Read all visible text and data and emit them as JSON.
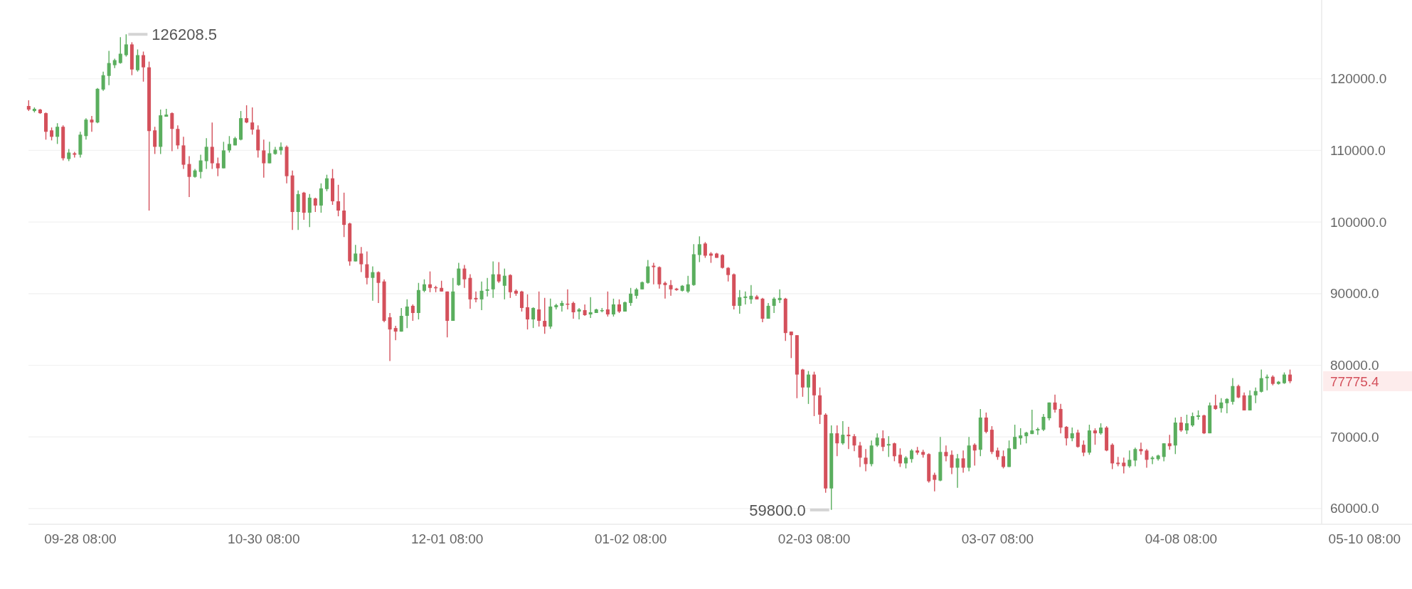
{
  "chart_data": {
    "type": "candlestick",
    "categories": [
      null,
      null,
      null,
      null,
      null,
      null,
      null,
      null,
      null,
      "09-28 08:00",
      null,
      null,
      null,
      null,
      null,
      null,
      null,
      null,
      null,
      null,
      null,
      null,
      null,
      null,
      null,
      null,
      null,
      null,
      null,
      null,
      null,
      null,
      null,
      null,
      null,
      null,
      null,
      null,
      null,
      null,
      null,
      "10-30 08:00",
      null,
      null,
      null,
      null,
      null,
      null,
      null,
      null,
      null,
      null,
      null,
      null,
      null,
      null,
      null,
      null,
      null,
      null,
      null,
      null,
      null,
      null,
      null,
      null,
      null,
      null,
      null,
      null,
      null,
      null,
      null,
      "12-01 08:00",
      null,
      null,
      null,
      null,
      null,
      null,
      null,
      null,
      null,
      null,
      null,
      null,
      null,
      null,
      null,
      null,
      null,
      null,
      null,
      null,
      null,
      null,
      null,
      null,
      null,
      null,
      null,
      null,
      null,
      null,
      null,
      "01-02 08:00",
      null,
      null,
      null,
      null,
      null,
      null,
      null,
      null,
      null,
      null,
      null,
      null,
      null,
      null,
      null,
      null,
      null,
      null,
      null,
      null,
      null,
      null,
      null,
      null,
      null,
      null,
      null,
      null,
      null,
      null,
      null,
      "02-03 08:00",
      null,
      null,
      null,
      null,
      null,
      null,
      null,
      null,
      null,
      null,
      null,
      null,
      null,
      null,
      null,
      null,
      null,
      null,
      null,
      null,
      null,
      null,
      null,
      null,
      null,
      null,
      null,
      null,
      null,
      null,
      null,
      "03-07 08:00",
      null,
      null,
      null,
      null,
      null,
      null,
      null,
      null,
      null,
      null,
      null,
      null,
      null,
      null,
      null,
      null,
      null,
      null,
      null,
      null,
      null,
      null,
      null,
      null,
      null,
      null,
      null,
      null,
      null,
      null,
      null,
      "04-08 08:00",
      null,
      null,
      null,
      null,
      null,
      null,
      null,
      null,
      null,
      null,
      null,
      null,
      null,
      null,
      null,
      null,
      null,
      null,
      null,
      null,
      null,
      null,
      null,
      null,
      null,
      null,
      null,
      null,
      null,
      null,
      null,
      "05-10 08:00"
    ],
    "ohlc": [
      [
        116200,
        117000,
        115500,
        115700
      ],
      [
        115500,
        116000,
        115300,
        115800
      ],
      [
        115700,
        115800,
        115100,
        115200
      ],
      [
        115200,
        115300,
        111500,
        112600
      ],
      [
        112800,
        113200,
        111400,
        111900
      ],
      [
        111900,
        113800,
        110900,
        113300
      ],
      [
        113300,
        113500,
        108600,
        108900
      ],
      [
        108800,
        110200,
        108500,
        109700
      ],
      [
        109600,
        109800,
        109000,
        109400
      ],
      [
        109400,
        112600,
        109000,
        112200
      ],
      [
        112000,
        114500,
        111500,
        114300
      ],
      [
        114300,
        114800,
        112600,
        113900
      ],
      [
        113900,
        118700,
        113800,
        118600
      ],
      [
        118500,
        121000,
        118300,
        120500
      ],
      [
        120400,
        123900,
        119100,
        122200
      ],
      [
        121900,
        122800,
        121500,
        122600
      ],
      [
        122200,
        125800,
        122100,
        123500
      ],
      [
        123300,
        126208.5,
        123100,
        124800
      ],
      [
        124800,
        125100,
        120500,
        121300
      ],
      [
        121200,
        124100,
        121000,
        123300
      ],
      [
        123300,
        123800,
        119600,
        121600
      ],
      [
        121600,
        122400,
        101600,
        112700
      ],
      [
        112800,
        113300,
        109500,
        110500
      ],
      [
        110500,
        115700,
        109500,
        114900
      ],
      [
        114700,
        115800,
        114700,
        115000
      ],
      [
        115200,
        115300,
        109900,
        113000
      ],
      [
        113000,
        113500,
        110200,
        110700
      ],
      [
        110700,
        111900,
        107400,
        108000
      ],
      [
        108100,
        109200,
        103500,
        106300
      ],
      [
        106300,
        107400,
        106200,
        107200
      ],
      [
        107000,
        109400,
        106100,
        108600
      ],
      [
        108500,
        111700,
        107400,
        110500
      ],
      [
        110500,
        113900,
        107400,
        108200
      ],
      [
        108200,
        109000,
        106400,
        107500
      ],
      [
        107500,
        111200,
        107500,
        110000
      ],
      [
        110000,
        112000,
        109700,
        110900
      ],
      [
        110700,
        111900,
        110700,
        111700
      ],
      [
        111500,
        115500,
        111400,
        114500
      ],
      [
        114500,
        116300,
        113800,
        113900
      ],
      [
        113900,
        116000,
        112200,
        112900
      ],
      [
        112900,
        113500,
        109000,
        110000
      ],
      [
        110000,
        111500,
        106200,
        108200
      ],
      [
        108200,
        111200,
        108200,
        109600
      ],
      [
        109500,
        110500,
        109400,
        110100
      ],
      [
        110000,
        111100,
        109400,
        110500
      ],
      [
        110500,
        110700,
        105400,
        106400
      ],
      [
        106500,
        107200,
        98900,
        101400
      ],
      [
        101400,
        104400,
        98900,
        103900
      ],
      [
        104100,
        104200,
        100300,
        101300
      ],
      [
        101300,
        103900,
        99300,
        103400
      ],
      [
        103300,
        103400,
        101400,
        102300
      ],
      [
        102300,
        105400,
        101300,
        104700
      ],
      [
        104600,
        106600,
        104300,
        106100
      ],
      [
        106100,
        107400,
        102400,
        102900
      ],
      [
        102900,
        105200,
        100800,
        101600
      ],
      [
        101600,
        104100,
        97900,
        99600
      ],
      [
        99800,
        99900,
        93900,
        94500
      ],
      [
        94500,
        96800,
        94500,
        95600
      ],
      [
        95600,
        96500,
        93000,
        94100
      ],
      [
        94100,
        95900,
        91300,
        92200
      ],
      [
        92200,
        93800,
        89000,
        93000
      ],
      [
        93000,
        93100,
        88700,
        91500
      ],
      [
        91700,
        92000,
        86000,
        86200
      ],
      [
        86700,
        87300,
        80600,
        85000
      ],
      [
        85200,
        85500,
        83500,
        84700
      ],
      [
        84700,
        88000,
        84700,
        86900
      ],
      [
        86900,
        89200,
        85200,
        88200
      ],
      [
        88300,
        88500,
        86200,
        87300
      ],
      [
        87300,
        91500,
        86400,
        90500
      ],
      [
        90400,
        92000,
        90200,
        91300
      ],
      [
        91300,
        93100,
        90200,
        90800
      ],
      [
        90900,
        91100,
        90200,
        90800
      ],
      [
        90800,
        91800,
        90300,
        90300
      ],
      [
        90300,
        90300,
        83900,
        86200
      ],
      [
        86200,
        92200,
        86200,
        90300
      ],
      [
        91200,
        94300,
        91100,
        93500
      ],
      [
        93500,
        94000,
        90800,
        92000
      ],
      [
        92200,
        92700,
        87900,
        89200
      ],
      [
        89400,
        90300,
        88800,
        89200
      ],
      [
        89200,
        91700,
        87700,
        90400
      ],
      [
        90400,
        92200,
        89600,
        90600
      ],
      [
        90600,
        94500,
        89400,
        92700
      ],
      [
        92700,
        94400,
        91500,
        91700
      ],
      [
        91100,
        93500,
        89200,
        92500
      ],
      [
        92600,
        92700,
        89400,
        90200
      ],
      [
        90400,
        90600,
        89700,
        90000
      ],
      [
        90300,
        90400,
        87500,
        88000
      ],
      [
        88100,
        89900,
        85000,
        86400
      ],
      [
        86400,
        88100,
        85200,
        88000
      ],
      [
        87800,
        90300,
        85400,
        86200
      ],
      [
        86200,
        89400,
        84400,
        85400
      ],
      [
        85400,
        89300,
        85100,
        88200
      ],
      [
        88100,
        88600,
        87800,
        88400
      ],
      [
        88300,
        89000,
        87500,
        88700
      ],
      [
        88600,
        90600,
        87800,
        88500
      ],
      [
        88700,
        88900,
        86500,
        87400
      ],
      [
        87500,
        88000,
        86400,
        87800
      ],
      [
        87700,
        88500,
        86900,
        87000
      ],
      [
        87100,
        89500,
        86600,
        87400
      ],
      [
        87300,
        87900,
        87300,
        87800
      ],
      [
        87600,
        88000,
        87400,
        87700
      ],
      [
        87800,
        90300,
        86800,
        87100
      ],
      [
        87100,
        89300,
        86800,
        88500
      ],
      [
        88500,
        89200,
        87300,
        87500
      ],
      [
        87500,
        88900,
        87500,
        88800
      ],
      [
        88700,
        90800,
        88300,
        90000
      ],
      [
        89700,
        90800,
        89300,
        90600
      ],
      [
        90600,
        91700,
        90600,
        91600
      ],
      [
        91500,
        94700,
        91400,
        93800
      ],
      [
        93900,
        94300,
        91300,
        93700
      ],
      [
        93700,
        93800,
        90700,
        91300
      ],
      [
        91500,
        91700,
        89300,
        91200
      ],
      [
        91200,
        91900,
        89700,
        90600
      ],
      [
        90700,
        90800,
        90400,
        90500
      ],
      [
        90400,
        91200,
        90300,
        91100
      ],
      [
        90300,
        92500,
        90100,
        91300
      ],
      [
        91200,
        96900,
        91100,
        95500
      ],
      [
        95400,
        98000,
        94400,
        96900
      ],
      [
        97000,
        97200,
        95000,
        95300
      ],
      [
        95600,
        95800,
        94300,
        95300
      ],
      [
        95600,
        95700,
        95000,
        95000
      ],
      [
        95400,
        95500,
        93500,
        93600
      ],
      [
        93600,
        93700,
        91700,
        92600
      ],
      [
        92700,
        92800,
        87800,
        88300
      ],
      [
        88300,
        90500,
        87200,
        89500
      ],
      [
        89400,
        90300,
        88500,
        89600
      ],
      [
        89200,
        91200,
        88600,
        89700
      ],
      [
        89600,
        89800,
        89200,
        89200
      ],
      [
        89300,
        89400,
        86000,
        86500
      ],
      [
        86500,
        88700,
        86500,
        88300
      ],
      [
        88300,
        89500,
        87300,
        89300
      ],
      [
        89100,
        90600,
        88700,
        89400
      ],
      [
        89300,
        89400,
        83400,
        84500
      ],
      [
        84700,
        84700,
        81000,
        84200
      ],
      [
        84200,
        84200,
        75400,
        78700
      ],
      [
        79400,
        79500,
        75600,
        76900
      ],
      [
        76900,
        79200,
        74600,
        78700
      ],
      [
        78700,
        79100,
        72900,
        75800
      ],
      [
        75800,
        76900,
        71800,
        73100
      ],
      [
        73100,
        73300,
        62200,
        62800
      ],
      [
        62800,
        71600,
        59800,
        70500
      ],
      [
        70500,
        71600,
        67300,
        69100
      ],
      [
        69100,
        72200,
        68900,
        70300
      ],
      [
        70300,
        71400,
        68300,
        70100
      ],
      [
        70100,
        70400,
        68000,
        68800
      ],
      [
        68800,
        69300,
        65800,
        67100
      ],
      [
        67100,
        68300,
        65200,
        66200
      ],
      [
        66200,
        69500,
        65900,
        68800
      ],
      [
        68800,
        70500,
        68600,
        69900
      ],
      [
        69800,
        70900,
        68000,
        68600
      ],
      [
        68800,
        70100,
        67200,
        69000
      ],
      [
        69100,
        69200,
        66600,
        67300
      ],
      [
        67500,
        68400,
        65800,
        66300
      ],
      [
        66300,
        67300,
        65600,
        67100
      ],
      [
        66900,
        68300,
        66400,
        68100
      ],
      [
        68100,
        68600,
        67500,
        67800
      ],
      [
        67900,
        68200,
        67100,
        67500
      ],
      [
        67600,
        67700,
        63600,
        63800
      ],
      [
        64700,
        65000,
        62400,
        64000
      ],
      [
        63900,
        70000,
        63800,
        67900
      ],
      [
        67900,
        68800,
        66600,
        67300
      ],
      [
        67500,
        68100,
        64800,
        65700
      ],
      [
        65700,
        67600,
        62900,
        67000
      ],
      [
        67000,
        68100,
        65000,
        65700
      ],
      [
        65700,
        70000,
        65200,
        68800
      ],
      [
        68900,
        69100,
        66000,
        68100
      ],
      [
        68200,
        73900,
        67300,
        72700
      ],
      [
        72700,
        73400,
        70500,
        70700
      ],
      [
        71000,
        71500,
        67600,
        67900
      ],
      [
        68100,
        68500,
        66800,
        67200
      ],
      [
        67300,
        68100,
        65600,
        65800
      ],
      [
        65800,
        69500,
        65800,
        68400
      ],
      [
        68300,
        71700,
        68300,
        70000
      ],
      [
        69800,
        71200,
        68900,
        70200
      ],
      [
        70100,
        70700,
        69100,
        70600
      ],
      [
        70400,
        73800,
        70400,
        70900
      ],
      [
        70900,
        71300,
        70300,
        71100
      ],
      [
        71000,
        73200,
        70800,
        72800
      ],
      [
        72600,
        74800,
        72300,
        74800
      ],
      [
        74800,
        75900,
        73400,
        73800
      ],
      [
        73900,
        74600,
        70500,
        71300
      ],
      [
        71400,
        71500,
        68800,
        69800
      ],
      [
        69800,
        71300,
        69400,
        70500
      ],
      [
        70600,
        71000,
        68500,
        68600
      ],
      [
        68900,
        69500,
        67300,
        67800
      ],
      [
        67800,
        71700,
        67500,
        70900
      ],
      [
        70900,
        71200,
        68900,
        70500
      ],
      [
        70500,
        71900,
        70300,
        71300
      ],
      [
        71300,
        71500,
        68000,
        68100
      ],
      [
        68900,
        69100,
        65500,
        66300
      ],
      [
        66400,
        67200,
        65900,
        66200
      ],
      [
        66400,
        67100,
        64900,
        65900
      ],
      [
        65900,
        68100,
        65700,
        66800
      ],
      [
        66700,
        68500,
        65900,
        68300
      ],
      [
        68300,
        69200,
        67500,
        68000
      ],
      [
        68100,
        68300,
        65700,
        66800
      ],
      [
        66900,
        67300,
        66200,
        67100
      ],
      [
        66900,
        67500,
        66700,
        67400
      ],
      [
        67200,
        69100,
        66600,
        69100
      ],
      [
        69100,
        70300,
        68200,
        68700
      ],
      [
        68800,
        72700,
        67600,
        72000
      ],
      [
        72000,
        72800,
        70700,
        70900
      ],
      [
        70900,
        73100,
        70400,
        71900
      ],
      [
        71600,
        73400,
        71400,
        72900
      ],
      [
        72800,
        73700,
        72400,
        73000
      ],
      [
        73000,
        73100,
        70400,
        70500
      ],
      [
        70500,
        74800,
        70500,
        74400
      ],
      [
        74400,
        75900,
        73800,
        73900
      ],
      [
        74000,
        75400,
        73400,
        74800
      ],
      [
        74700,
        75400,
        73300,
        75300
      ],
      [
        74900,
        78200,
        74500,
        77100
      ],
      [
        77100,
        77300,
        75400,
        75500
      ],
      [
        75800,
        76200,
        73700,
        73700
      ],
      [
        73700,
        76500,
        73700,
        75800
      ],
      [
        75800,
        76900,
        74700,
        76400
      ],
      [
        76300,
        79400,
        76200,
        78200
      ],
      [
        78200,
        78700,
        76500,
        78400
      ],
      [
        78400,
        78600,
        77200,
        77400
      ],
      [
        77400,
        77800,
        77300,
        77700
      ],
      [
        77500,
        79000,
        77400,
        78700
      ],
      [
        78700,
        79400,
        77500,
        77775.4
      ],
      null,
      null,
      null,
      null,
      null,
      null,
      null,
      null,
      null,
      null,
      null,
      null,
      null
    ],
    "ylim": [
      57800,
      131000
    ],
    "yticks": [
      {
        "value": 60000,
        "label": "60000.0"
      },
      {
        "value": 70000,
        "label": "70000.0"
      },
      {
        "value": 80000,
        "label": "80000.0"
      },
      {
        "value": 90000,
        "label": "90000.0"
      },
      {
        "value": 100000,
        "label": "100000.0"
      },
      {
        "value": 110000,
        "label": "110000.0"
      },
      {
        "value": 120000,
        "label": "120000.0"
      }
    ],
    "grid": "y",
    "annotations": [
      "126208.5",
      "59800.0",
      "77775.4"
    ]
  }
}
